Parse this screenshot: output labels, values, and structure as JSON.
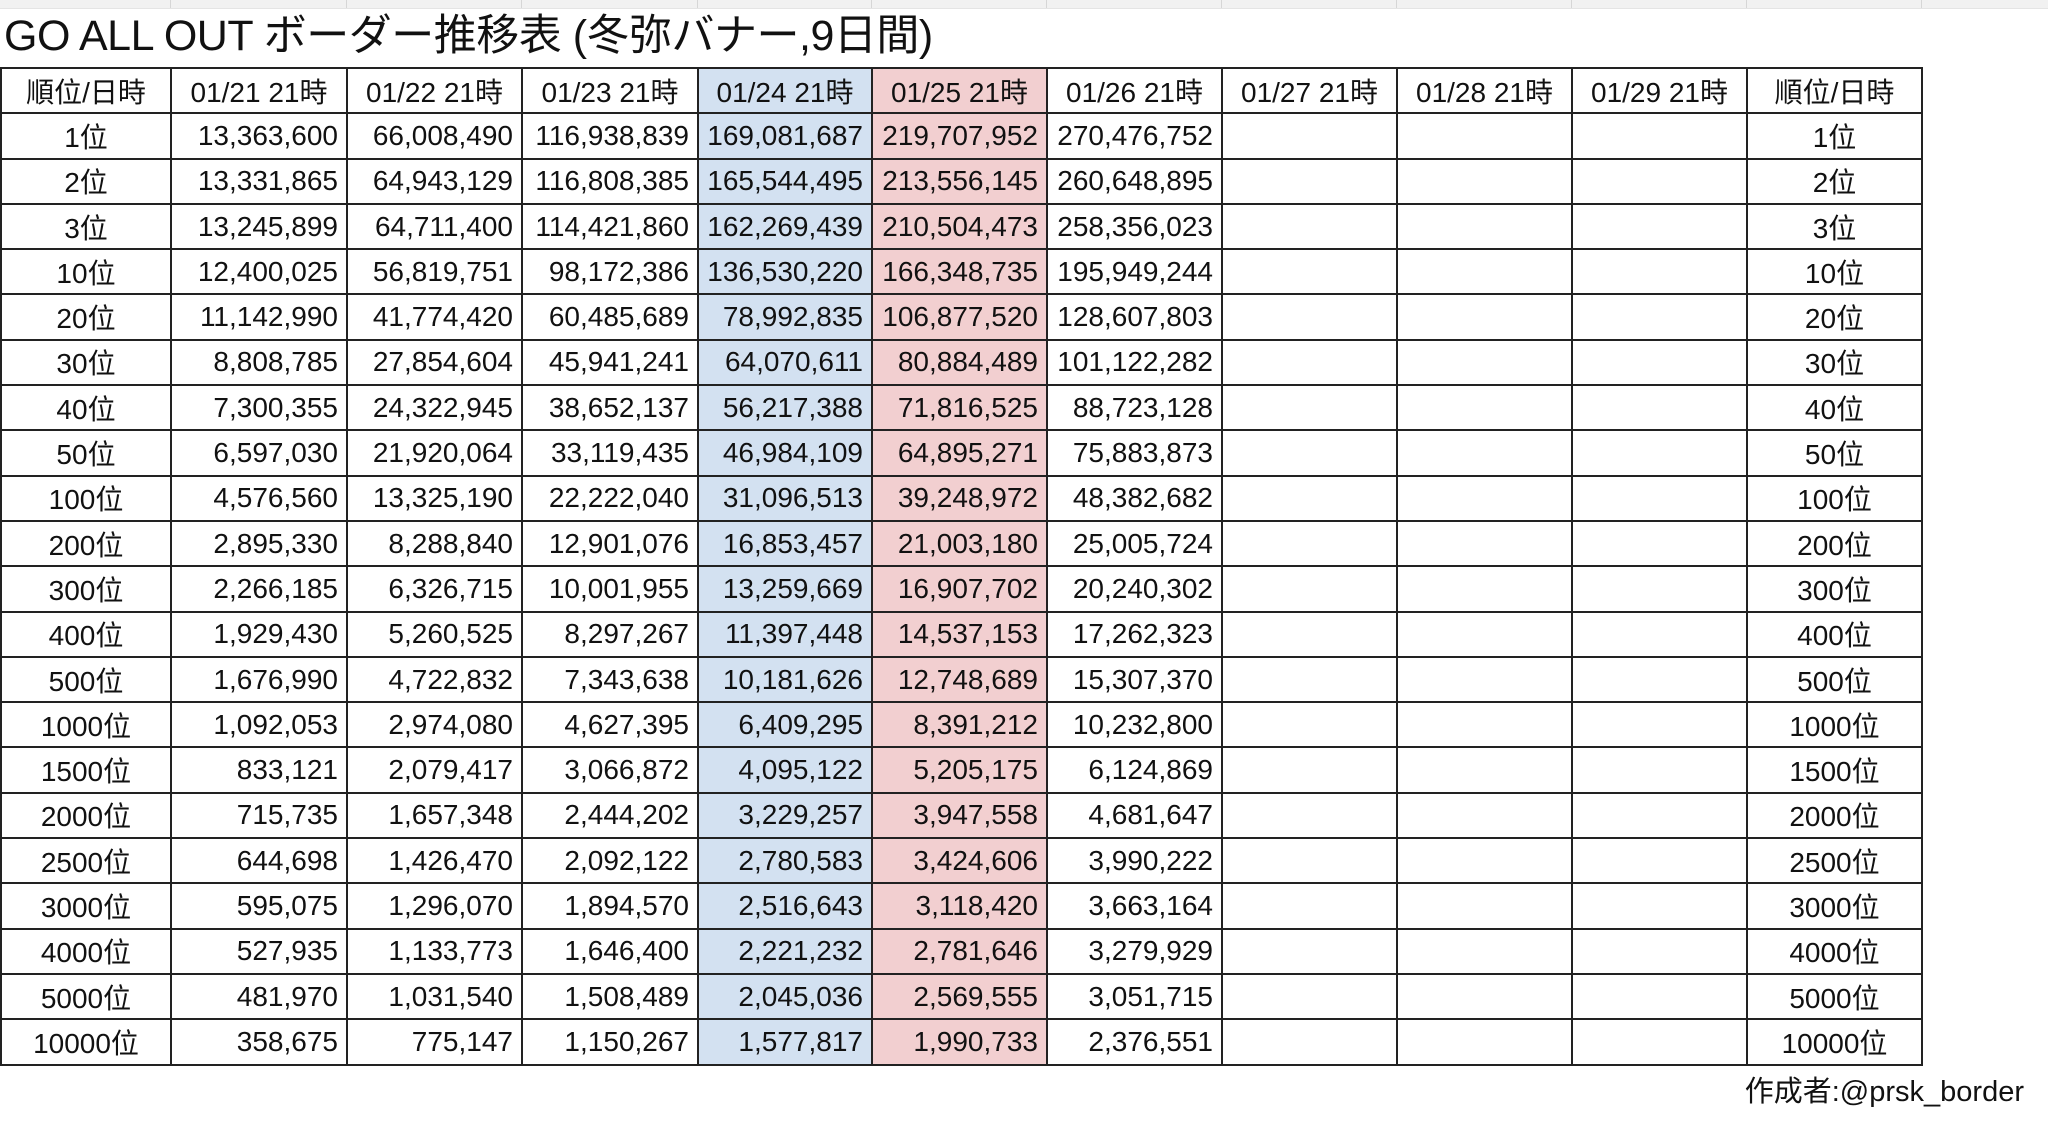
{
  "title": "GO ALL OUT ボーダー推移表 (冬弥バナー,9日間)",
  "header": [
    "順位/日時",
    "01/21 21時",
    "01/22 21時",
    "01/23 21時",
    "01/24 21時",
    "01/25 21時",
    "01/26 21時",
    "01/27 21時",
    "01/28 21時",
    "01/29 21時",
    "順位/日時"
  ],
  "highlight_colors": {
    "01/24 21時": "#d3e1f1",
    "01/25 21時": "#f2cfd0"
  },
  "rows": [
    {
      "rank": "1位",
      "values": [
        "13,363,600",
        "66,008,490",
        "116,938,839",
        "169,081,687",
        "219,707,952",
        "270,476,752",
        "",
        "",
        ""
      ]
    },
    {
      "rank": "2位",
      "values": [
        "13,331,865",
        "64,943,129",
        "116,808,385",
        "165,544,495",
        "213,556,145",
        "260,648,895",
        "",
        "",
        ""
      ]
    },
    {
      "rank": "3位",
      "values": [
        "13,245,899",
        "64,711,400",
        "114,421,860",
        "162,269,439",
        "210,504,473",
        "258,356,023",
        "",
        "",
        ""
      ]
    },
    {
      "rank": "10位",
      "values": [
        "12,400,025",
        "56,819,751",
        "98,172,386",
        "136,530,220",
        "166,348,735",
        "195,949,244",
        "",
        "",
        ""
      ]
    },
    {
      "rank": "20位",
      "values": [
        "11,142,990",
        "41,774,420",
        "60,485,689",
        "78,992,835",
        "106,877,520",
        "128,607,803",
        "",
        "",
        ""
      ]
    },
    {
      "rank": "30位",
      "values": [
        "8,808,785",
        "27,854,604",
        "45,941,241",
        "64,070,611",
        "80,884,489",
        "101,122,282",
        "",
        "",
        ""
      ]
    },
    {
      "rank": "40位",
      "values": [
        "7,300,355",
        "24,322,945",
        "38,652,137",
        "56,217,388",
        "71,816,525",
        "88,723,128",
        "",
        "",
        ""
      ]
    },
    {
      "rank": "50位",
      "values": [
        "6,597,030",
        "21,920,064",
        "33,119,435",
        "46,984,109",
        "64,895,271",
        "75,883,873",
        "",
        "",
        ""
      ]
    },
    {
      "rank": "100位",
      "values": [
        "4,576,560",
        "13,325,190",
        "22,222,040",
        "31,096,513",
        "39,248,972",
        "48,382,682",
        "",
        "",
        ""
      ]
    },
    {
      "rank": "200位",
      "values": [
        "2,895,330",
        "8,288,840",
        "12,901,076",
        "16,853,457",
        "21,003,180",
        "25,005,724",
        "",
        "",
        ""
      ]
    },
    {
      "rank": "300位",
      "values": [
        "2,266,185",
        "6,326,715",
        "10,001,955",
        "13,259,669",
        "16,907,702",
        "20,240,302",
        "",
        "",
        ""
      ]
    },
    {
      "rank": "400位",
      "values": [
        "1,929,430",
        "5,260,525",
        "8,297,267",
        "11,397,448",
        "14,537,153",
        "17,262,323",
        "",
        "",
        ""
      ]
    },
    {
      "rank": "500位",
      "values": [
        "1,676,990",
        "4,722,832",
        "7,343,638",
        "10,181,626",
        "12,748,689",
        "15,307,370",
        "",
        "",
        ""
      ]
    },
    {
      "rank": "1000位",
      "values": [
        "1,092,053",
        "2,974,080",
        "4,627,395",
        "6,409,295",
        "8,391,212",
        "10,232,800",
        "",
        "",
        ""
      ]
    },
    {
      "rank": "1500位",
      "values": [
        "833,121",
        "2,079,417",
        "3,066,872",
        "4,095,122",
        "5,205,175",
        "6,124,869",
        "",
        "",
        ""
      ]
    },
    {
      "rank": "2000位",
      "values": [
        "715,735",
        "1,657,348",
        "2,444,202",
        "3,229,257",
        "3,947,558",
        "4,681,647",
        "",
        "",
        ""
      ]
    },
    {
      "rank": "2500位",
      "values": [
        "644,698",
        "1,426,470",
        "2,092,122",
        "2,780,583",
        "3,424,606",
        "3,990,222",
        "",
        "",
        ""
      ]
    },
    {
      "rank": "3000位",
      "values": [
        "595,075",
        "1,296,070",
        "1,894,570",
        "2,516,643",
        "3,118,420",
        "3,663,164",
        "",
        "",
        ""
      ]
    },
    {
      "rank": "4000位",
      "values": [
        "527,935",
        "1,133,773",
        "1,646,400",
        "2,221,232",
        "2,781,646",
        "3,279,929",
        "",
        "",
        ""
      ]
    },
    {
      "rank": "5000位",
      "values": [
        "481,970",
        "1,031,540",
        "1,508,489",
        "2,045,036",
        "2,569,555",
        "3,051,715",
        "",
        "",
        ""
      ]
    },
    {
      "rank": "10000位",
      "values": [
        "358,675",
        "775,147",
        "1,150,267",
        "1,577,817",
        "1,990,733",
        "2,376,551",
        "",
        "",
        ""
      ]
    }
  ],
  "footer": "作成者:@prsk_border"
}
